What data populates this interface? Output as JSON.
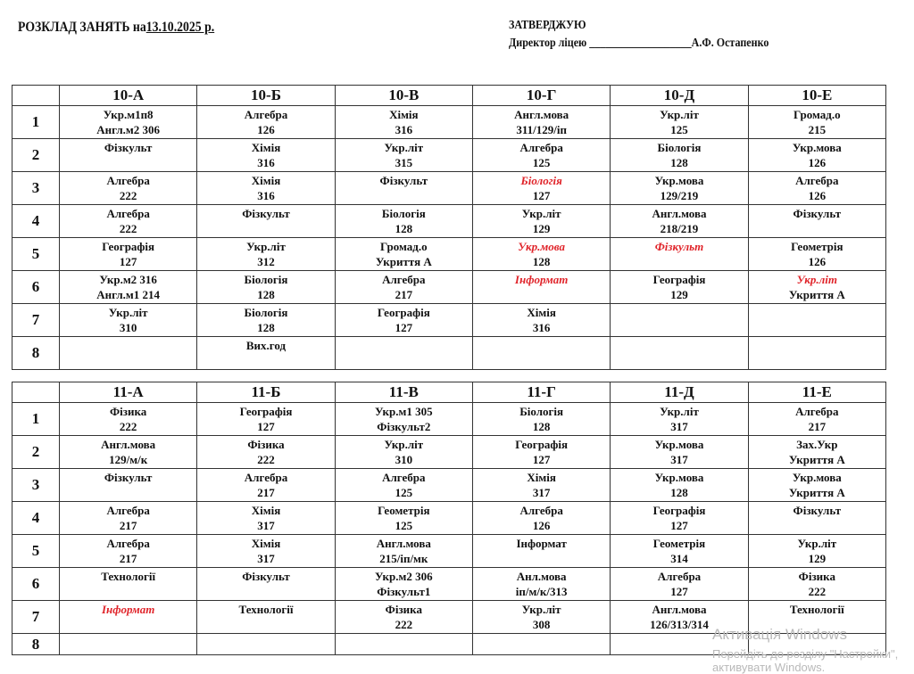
{
  "header": {
    "title": "РОЗКЛАД  ЗАНЯТЬ на",
    "date": "13.10.2025 р.",
    "approve": "ЗАТВЕРДЖУЮ",
    "director": "Директор ліцею ___________________А.Ф. Остапенко"
  },
  "colors": {
    "highlight": "#e0242a",
    "border": "#333333"
  },
  "tables": [
    {
      "classes": [
        "10-А",
        "10-Б",
        "10-В",
        "10-Г",
        "10-Д",
        "10-Е"
      ],
      "rows": [
        {
          "n": "1",
          "cells": [
            [
              {
                "t": "Укр.м1п8"
              },
              {
                "t": "Англ.м2 306"
              }
            ],
            [
              {
                "t": "Алгебра"
              },
              {
                "t": "126"
              }
            ],
            [
              {
                "t": "Хімія"
              },
              {
                "t": "316"
              }
            ],
            [
              {
                "t": "Англ.мова"
              },
              {
                "t": "311/129/іп"
              }
            ],
            [
              {
                "t": "Укр.літ"
              },
              {
                "t": "125"
              }
            ],
            [
              {
                "t": "Громад.о"
              },
              {
                "t": "215"
              }
            ]
          ]
        },
        {
          "n": "2",
          "cells": [
            [
              {
                "t": "Фізкульт"
              }
            ],
            [
              {
                "t": "Хімія"
              },
              {
                "t": "316"
              }
            ],
            [
              {
                "t": "Укр.літ"
              },
              {
                "t": "315"
              }
            ],
            [
              {
                "t": "Алгебра"
              },
              {
                "t": "125"
              }
            ],
            [
              {
                "t": "Біологія"
              },
              {
                "t": "128"
              }
            ],
            [
              {
                "t": "Укр.мова"
              },
              {
                "t": "126"
              }
            ]
          ]
        },
        {
          "n": "3",
          "cells": [
            [
              {
                "t": "Алгебра"
              },
              {
                "t": "222"
              }
            ],
            [
              {
                "t": "Хімія"
              },
              {
                "t": "316"
              }
            ],
            [
              {
                "t": "Фізкульт"
              }
            ],
            [
              {
                "t": "Біологія",
                "red": true
              },
              {
                "t": "127"
              }
            ],
            [
              {
                "t": "Укр.мова"
              },
              {
                "t": "129/219"
              }
            ],
            [
              {
                "t": "Алгебра"
              },
              {
                "t": "126"
              }
            ]
          ]
        },
        {
          "n": "4",
          "cells": [
            [
              {
                "t": "Алгебра"
              },
              {
                "t": "222"
              }
            ],
            [
              {
                "t": "Фізкульт"
              }
            ],
            [
              {
                "t": "Біологія"
              },
              {
                "t": "128"
              }
            ],
            [
              {
                "t": "Укр.літ"
              },
              {
                "t": "129"
              }
            ],
            [
              {
                "t": "Англ.мова"
              },
              {
                "t": "218/219"
              }
            ],
            [
              {
                "t": "Фізкульт"
              }
            ]
          ]
        },
        {
          "n": "5",
          "cells": [
            [
              {
                "t": "Географія"
              },
              {
                "t": "127"
              }
            ],
            [
              {
                "t": "Укр.літ"
              },
              {
                "t": "312"
              }
            ],
            [
              {
                "t": "Громад.о"
              },
              {
                "t": "Укриття А"
              }
            ],
            [
              {
                "t": "Укр.мова",
                "red": true
              },
              {
                "t": "128"
              }
            ],
            [
              {
                "t": "Фізкульт",
                "red": true
              }
            ],
            [
              {
                "t": "Геометрія"
              },
              {
                "t": "126"
              }
            ]
          ]
        },
        {
          "n": "6",
          "cells": [
            [
              {
                "t": "Укр.м2 316"
              },
              {
                "t": "Англ.м1 214"
              }
            ],
            [
              {
                "t": "Біологія"
              },
              {
                "t": "128"
              }
            ],
            [
              {
                "t": "Алгебра"
              },
              {
                "t": "217"
              }
            ],
            [
              {
                "t": "Інформат",
                "red": true
              }
            ],
            [
              {
                "t": "Географія"
              },
              {
                "t": "129"
              }
            ],
            [
              {
                "t": "Укр.літ",
                "red": true
              },
              {
                "t": "Укриття А"
              }
            ]
          ]
        },
        {
          "n": "7",
          "cells": [
            [
              {
                "t": "Укр.літ"
              },
              {
                "t": "310"
              }
            ],
            [
              {
                "t": "Біологія"
              },
              {
                "t": "128"
              }
            ],
            [
              {
                "t": "Географія"
              },
              {
                "t": "127"
              }
            ],
            [
              {
                "t": "Хімія"
              },
              {
                "t": "316"
              }
            ],
            [],
            []
          ]
        },
        {
          "n": "8",
          "cells": [
            [],
            [
              {
                "t": "Вих.год"
              }
            ],
            [],
            [],
            [],
            []
          ]
        }
      ]
    },
    {
      "classes": [
        "11-А",
        "11-Б",
        "11-В",
        "11-Г",
        "11-Д",
        "11-Е"
      ],
      "rows": [
        {
          "n": "1",
          "cells": [
            [
              {
                "t": "Фізика"
              },
              {
                "t": "222"
              }
            ],
            [
              {
                "t": "Географія"
              },
              {
                "t": "127"
              }
            ],
            [
              {
                "t": "Укр.м1 305"
              },
              {
                "t": "Фізкульт2"
              }
            ],
            [
              {
                "t": "Біологія"
              },
              {
                "t": "128"
              }
            ],
            [
              {
                "t": "Укр.літ"
              },
              {
                "t": "317"
              }
            ],
            [
              {
                "t": "Алгебра"
              },
              {
                "t": "217"
              }
            ]
          ]
        },
        {
          "n": "2",
          "cells": [
            [
              {
                "t": "Англ.мова"
              },
              {
                "t": "129/м/к"
              }
            ],
            [
              {
                "t": "Фізика"
              },
              {
                "t": "222"
              }
            ],
            [
              {
                "t": "Укр.літ"
              },
              {
                "t": "310"
              }
            ],
            [
              {
                "t": "Географія"
              },
              {
                "t": "127"
              }
            ],
            [
              {
                "t": "Укр.мова"
              },
              {
                "t": "317"
              }
            ],
            [
              {
                "t": "Зах.Укр"
              },
              {
                "t": "Укриття А"
              }
            ]
          ]
        },
        {
          "n": "3",
          "cells": [
            [
              {
                "t": "Фізкульт"
              }
            ],
            [
              {
                "t": "Алгебра"
              },
              {
                "t": "217"
              }
            ],
            [
              {
                "t": "Алгебра"
              },
              {
                "t": "125"
              }
            ],
            [
              {
                "t": "Хімія"
              },
              {
                "t": "317"
              }
            ],
            [
              {
                "t": "Укр.мова"
              },
              {
                "t": "128"
              }
            ],
            [
              {
                "t": "Укр.мова"
              },
              {
                "t": "Укриття А"
              }
            ]
          ]
        },
        {
          "n": "4",
          "cells": [
            [
              {
                "t": "Алгебра"
              },
              {
                "t": "217"
              }
            ],
            [
              {
                "t": "Хімія"
              },
              {
                "t": "317"
              }
            ],
            [
              {
                "t": "Геометрія"
              },
              {
                "t": "125"
              }
            ],
            [
              {
                "t": "Алгебра"
              },
              {
                "t": "126"
              }
            ],
            [
              {
                "t": "Географія"
              },
              {
                "t": "127"
              }
            ],
            [
              {
                "t": "Фізкульт"
              }
            ]
          ]
        },
        {
          "n": "5",
          "cells": [
            [
              {
                "t": "Алгебра"
              },
              {
                "t": "217"
              }
            ],
            [
              {
                "t": "Хімія"
              },
              {
                "t": "317"
              }
            ],
            [
              {
                "t": "Англ.мова"
              },
              {
                "t": "215/іп/мк"
              }
            ],
            [
              {
                "t": "Інформат"
              }
            ],
            [
              {
                "t": "Геометрія"
              },
              {
                "t": "314"
              }
            ],
            [
              {
                "t": "Укр.літ"
              },
              {
                "t": "129"
              }
            ]
          ]
        },
        {
          "n": "6",
          "cells": [
            [
              {
                "t": "Технології"
              }
            ],
            [
              {
                "t": "Фізкульт"
              }
            ],
            [
              {
                "t": "Укр.м2 306"
              },
              {
                "t": "Фізкульт1"
              }
            ],
            [
              {
                "t": "Анл.мова"
              },
              {
                "t": "іп/м/к/313"
              }
            ],
            [
              {
                "t": "Алгебра"
              },
              {
                "t": "127"
              }
            ],
            [
              {
                "t": "Фізика"
              },
              {
                "t": "222"
              }
            ]
          ]
        },
        {
          "n": "7",
          "cells": [
            [
              {
                "t": "Інформат",
                "red": true
              }
            ],
            [
              {
                "t": "Технології"
              }
            ],
            [
              {
                "t": "Фізика"
              },
              {
                "t": "222"
              }
            ],
            [
              {
                "t": "Укр.літ"
              },
              {
                "t": "308"
              }
            ],
            [
              {
                "t": "Англ.мова"
              },
              {
                "t": "126/313/314"
              }
            ],
            [
              {
                "t": "Технології"
              }
            ]
          ]
        },
        {
          "n": "8",
          "cells": [
            [],
            [],
            [],
            [],
            [],
            []
          ]
        }
      ]
    }
  ],
  "watermark": {
    "line1": "Активація Windows",
    "line2": "Перейдіть до розділу \"Настройки\",",
    "line3": "активувати Windows."
  }
}
